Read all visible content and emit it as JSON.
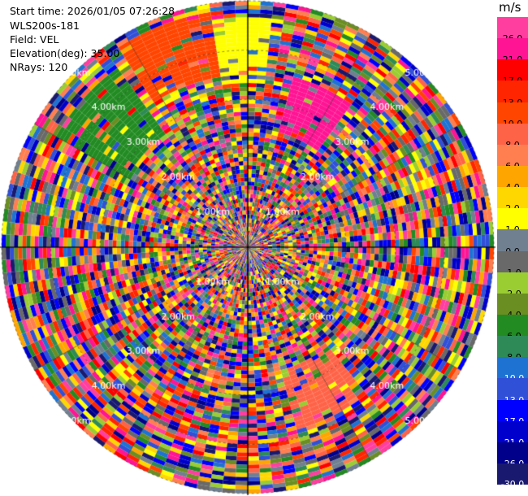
{
  "header": {
    "start_time": "Start time: 2026/01/05 07:26:28",
    "station": "WLS200s-181",
    "field": "Field: VEL",
    "elevation": "Elevation(deg): 35.00",
    "nrays": "NRays: 120"
  },
  "colorbar": {
    "unit": "m/s",
    "ticks": [
      "26.0",
      "21.0",
      "17.0",
      "13.0",
      "10.0",
      "8.0",
      "6.0",
      "4.0",
      "2.0",
      "1.0",
      "0.0",
      "-1.0",
      "-2.0",
      "-4.0",
      "-6.0",
      "-8.0",
      "-10.0",
      "-13.0",
      "-17.0",
      "-21.0",
      "-26.0",
      "-30.0"
    ],
    "colors": [
      "#ff3ea0",
      "#ff1493",
      "#ff0000",
      "#ff2500",
      "#ff4500",
      "#ff6347",
      "#ff7f50",
      "#ffa500",
      "#ffd700",
      "#ffff00",
      "#708090",
      "#696969",
      "#9acd32",
      "#6b8e23",
      "#228b22",
      "#2e8b57",
      "#1e73d2",
      "#3050d8",
      "#0000ff",
      "#0000cd",
      "#00008b",
      "#191970"
    ]
  },
  "chart_data": {
    "type": "heatmap",
    "projection": "polar-ppi",
    "field": "VEL",
    "unit": "m/s",
    "n_rays": 120,
    "range_ring_labels": [
      "1.00km",
      "2.00km",
      "3.00km",
      "4.00km",
      "5.00km"
    ],
    "range_rings_km": [
      1,
      2,
      3,
      4,
      5
    ],
    "max_range_km": 5.0,
    "notable_sectors": [
      {
        "azimuth_deg": [
          -10,
          5
        ],
        "range_km": [
          3.3,
          4.7
        ],
        "value_m_s": 1.0,
        "color": "#ffff00"
      },
      {
        "azimuth_deg": [
          15,
          35
        ],
        "range_km": [
          2.4,
          3.6
        ],
        "value_m_s": 26.0,
        "color": "#ff1493"
      },
      {
        "azimuth_deg": [
          -60,
          -35
        ],
        "range_km": [
          2.8,
          4.5
        ],
        "value_m_s": -6.0,
        "color": "#228b22"
      },
      {
        "azimuth_deg": [
          -32,
          -10
        ],
        "range_km": [
          3.5,
          4.8
        ],
        "value_m_s": 13.0,
        "color": "#ff4500"
      },
      {
        "azimuth_deg": [
          140,
          165
        ],
        "range_km": [
          2.6,
          3.8
        ],
        "value_m_s": 10.0,
        "color": "#ff6347"
      }
    ]
  }
}
